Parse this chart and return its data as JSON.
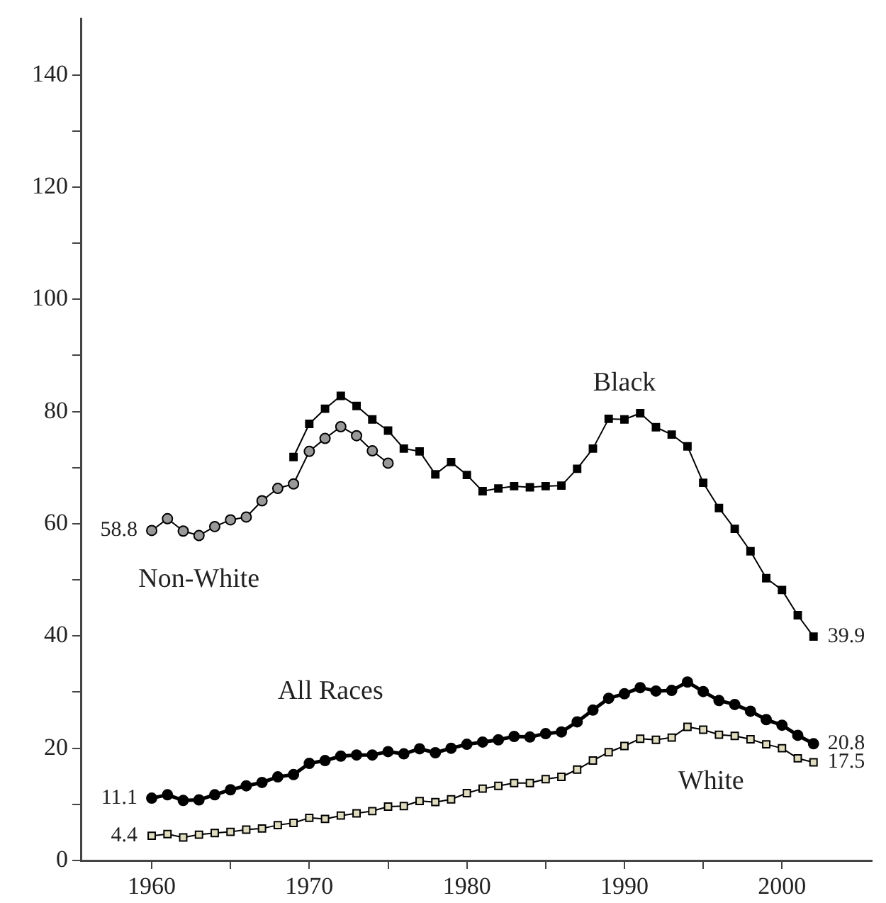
{
  "chart_data": {
    "type": "line",
    "x": [
      1960,
      1961,
      1962,
      1963,
      1964,
      1965,
      1966,
      1967,
      1968,
      1969,
      1970,
      1971,
      1972,
      1973,
      1974,
      1975,
      1976,
      1977,
      1978,
      1979,
      1980,
      1981,
      1982,
      1983,
      1984,
      1985,
      1986,
      1987,
      1988,
      1989,
      1990,
      1991,
      1992,
      1993,
      1994,
      1995,
      1996,
      1997,
      1998,
      1999,
      2000,
      2001,
      2002
    ],
    "series": [
      {
        "name": "Non-White",
        "color": "#999999",
        "marker": "circle",
        "x": [
          1960,
          1961,
          1962,
          1963,
          1964,
          1965,
          1966,
          1967,
          1968,
          1969,
          1970,
          1971,
          1972,
          1973,
          1974,
          1975
        ],
        "values": [
          58.8,
          60.9,
          58.7,
          57.9,
          59.5,
          60.7,
          61.2,
          64.1,
          66.3,
          67.1,
          72.9,
          75.2,
          77.3,
          75.7,
          73.0,
          70.8
        ],
        "value_labels": [
          "58.8",
          null,
          null,
          null,
          null,
          null,
          null,
          null,
          null,
          null,
          null,
          null,
          null,
          null,
          null,
          null
        ]
      },
      {
        "name": "Black",
        "color": "#000000",
        "marker": "square",
        "x": [
          1969,
          1970,
          1971,
          1972,
          1973,
          1974,
          1975,
          1976,
          1977,
          1978,
          1979,
          1980,
          1981,
          1982,
          1983,
          1984,
          1985,
          1986,
          1987,
          1988,
          1989,
          1990,
          1991,
          1992,
          1993,
          1994,
          1995,
          1996,
          1997,
          1998,
          1999,
          2000,
          2001,
          2002
        ],
        "values": [
          71.9,
          77.8,
          80.5,
          82.8,
          81.0,
          78.6,
          76.6,
          73.4,
          72.9,
          68.8,
          71.0,
          68.7,
          65.8,
          66.3,
          66.7,
          66.5,
          66.7,
          66.8,
          69.8,
          73.4,
          78.7,
          78.6,
          79.7,
          77.2,
          75.9,
          73.8,
          67.3,
          62.8,
          59.1,
          55.1,
          50.3,
          48.2,
          43.7,
          39.9
        ],
        "value_labels": [
          null,
          null,
          null,
          null,
          null,
          null,
          null,
          null,
          null,
          null,
          null,
          null,
          null,
          null,
          null,
          null,
          null,
          null,
          null,
          null,
          null,
          null,
          null,
          null,
          null,
          null,
          null,
          null,
          null,
          null,
          null,
          null,
          null,
          "39.9"
        ]
      },
      {
        "name": "All Races",
        "color": "#000000",
        "marker": "circle",
        "values": [
          11.1,
          11.7,
          10.7,
          10.8,
          11.7,
          12.6,
          13.3,
          13.9,
          14.9,
          15.3,
          17.3,
          17.8,
          18.6,
          18.8,
          18.8,
          19.4,
          19.0,
          19.9,
          19.2,
          20.0,
          20.7,
          21.1,
          21.5,
          22.1,
          22.0,
          22.6,
          22.9,
          24.7,
          26.8,
          28.9,
          29.7,
          30.8,
          30.2,
          30.3,
          31.8,
          30.1,
          28.5,
          27.8,
          26.6,
          25.1,
          24.1,
          22.3,
          20.8
        ],
        "value_labels": [
          "11.1",
          null,
          null,
          null,
          null,
          null,
          null,
          null,
          null,
          null,
          null,
          null,
          null,
          null,
          null,
          null,
          null,
          null,
          null,
          null,
          null,
          null,
          null,
          null,
          null,
          null,
          null,
          null,
          null,
          null,
          null,
          null,
          null,
          null,
          null,
          null,
          null,
          null,
          null,
          null,
          null,
          null,
          "20.8"
        ]
      },
      {
        "name": "White",
        "color": "#e0dcc0",
        "marker": "square",
        "values": [
          4.4,
          4.7,
          4.1,
          4.6,
          4.9,
          5.1,
          5.5,
          5.7,
          6.3,
          6.7,
          7.6,
          7.4,
          8.0,
          8.4,
          8.8,
          9.6,
          9.7,
          10.6,
          10.4,
          10.9,
          12.0,
          12.8,
          13.3,
          13.8,
          13.8,
          14.5,
          14.9,
          16.2,
          17.8,
          19.3,
          20.4,
          21.7,
          21.5,
          21.9,
          23.8,
          23.3,
          22.4,
          22.2,
          21.6,
          20.7,
          20.0,
          18.2,
          17.5
        ],
        "value_labels": [
          "4.4",
          null,
          null,
          null,
          null,
          null,
          null,
          null,
          null,
          null,
          null,
          null,
          null,
          null,
          null,
          null,
          null,
          null,
          null,
          null,
          null,
          null,
          null,
          null,
          null,
          null,
          null,
          null,
          null,
          null,
          null,
          null,
          null,
          null,
          null,
          null,
          null,
          null,
          null,
          null,
          null,
          null,
          "17.5"
        ]
      }
    ],
    "xlim": [
      1955.5,
      2005.7
    ],
    "xticks": [
      1960,
      {
        "value": 1965,
        "label": null
      },
      1970,
      {
        "value": 1975,
        "label": null
      },
      1980,
      {
        "value": 1985,
        "label": null
      },
      1990,
      {
        "value": 1995,
        "label": null
      },
      2000
    ],
    "ylim": [
      0,
      150
    ],
    "yticks": [
      0,
      {
        "value": 10,
        "label": null
      },
      20,
      {
        "value": 30,
        "label": null
      },
      40,
      {
        "value": 50,
        "label": null
      },
      60,
      {
        "value": 70,
        "label": null
      },
      80,
      {
        "value": 90,
        "label": null
      },
      100,
      {
        "value": 110,
        "label": null
      },
      120,
      {
        "value": 130,
        "label": null
      },
      140
    ],
    "grid": false,
    "legend": false,
    "line_style": "solid"
  }
}
